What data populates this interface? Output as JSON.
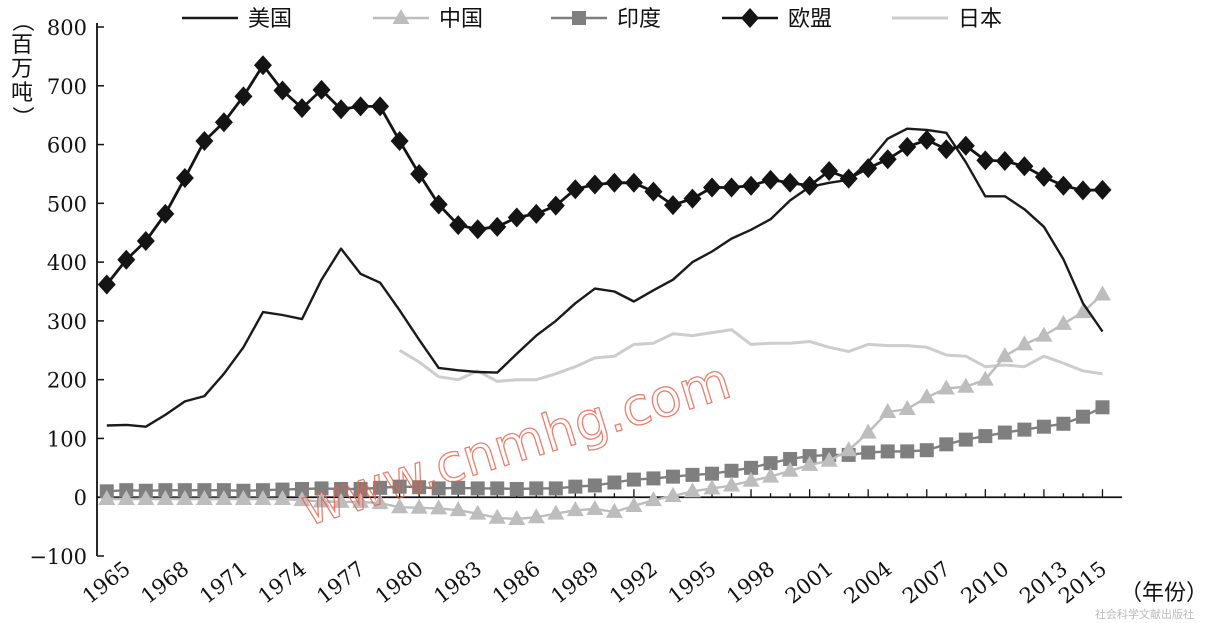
{
  "chart_data": {
    "type": "line",
    "title": "",
    "ylabel": "（百万吨）",
    "xlabel": "（年份）",
    "ylim": [
      -100,
      800
    ],
    "yticks": [
      "800",
      "700",
      "600",
      "500",
      "400",
      "300",
      "200",
      "100",
      "0",
      "−100"
    ],
    "xticks": [
      "1965",
      "1968",
      "1971",
      "1974",
      "1977",
      "1980",
      "1983",
      "1986",
      "1989",
      "1992",
      "1995",
      "1998",
      "2001",
      "2004",
      "2007",
      "2010",
      "2013",
      "2015"
    ],
    "legend_position": "top",
    "series": [
      {
        "name": "美国",
        "color": "#1a1a1a",
        "marker": "none",
        "points": [
          [
            1965,
            122
          ],
          [
            1966,
            123
          ],
          [
            1967,
            120
          ],
          [
            1968,
            140
          ],
          [
            1969,
            163
          ],
          [
            1970,
            172
          ],
          [
            1971,
            210
          ],
          [
            1972,
            255
          ],
          [
            1973,
            315
          ],
          [
            1974,
            310
          ],
          [
            1975,
            303
          ],
          [
            1976,
            370
          ],
          [
            1977,
            423
          ],
          [
            1978,
            380
          ],
          [
            1979,
            365
          ],
          [
            1980,
            318
          ],
          [
            1981,
            268
          ],
          [
            1982,
            220
          ],
          [
            1983,
            216
          ],
          [
            1984,
            213
          ],
          [
            1985,
            212
          ],
          [
            1986,
            244
          ],
          [
            1987,
            275
          ],
          [
            1988,
            300
          ],
          [
            1989,
            330
          ],
          [
            1990,
            355
          ],
          [
            1991,
            350
          ],
          [
            1992,
            333
          ],
          [
            1993,
            352
          ],
          [
            1994,
            370
          ],
          [
            1995,
            400
          ],
          [
            1996,
            418
          ],
          [
            1997,
            440
          ],
          [
            1998,
            455
          ],
          [
            1999,
            473
          ],
          [
            2000,
            505
          ],
          [
            2001,
            528
          ],
          [
            2002,
            535
          ],
          [
            2003,
            540
          ],
          [
            2004,
            570
          ],
          [
            2005,
            610
          ],
          [
            2006,
            627
          ],
          [
            2007,
            625
          ],
          [
            2008,
            620
          ],
          [
            2009,
            570
          ],
          [
            2010,
            512
          ],
          [
            2011,
            512
          ],
          [
            2012,
            490
          ],
          [
            2013,
            460
          ],
          [
            2014,
            405
          ],
          [
            2015,
            330
          ],
          [
            2016,
            282
          ]
        ]
      },
      {
        "name": "中国",
        "color": "#bdbdbd",
        "marker": "triangle",
        "points": [
          [
            1965,
            -3
          ],
          [
            1966,
            -3
          ],
          [
            1967,
            -3
          ],
          [
            1968,
            -3
          ],
          [
            1969,
            -3
          ],
          [
            1970,
            -3
          ],
          [
            1971,
            -3
          ],
          [
            1972,
            -3
          ],
          [
            1973,
            -3
          ],
          [
            1974,
            -3
          ],
          [
            1975,
            -5
          ],
          [
            1976,
            -7
          ],
          [
            1977,
            -8
          ],
          [
            1978,
            -8
          ],
          [
            1979,
            -10
          ],
          [
            1980,
            -17
          ],
          [
            1981,
            -18
          ],
          [
            1982,
            -19
          ],
          [
            1983,
            -22
          ],
          [
            1984,
            -28
          ],
          [
            1985,
            -35
          ],
          [
            1986,
            -37
          ],
          [
            1987,
            -34
          ],
          [
            1988,
            -28
          ],
          [
            1989,
            -22
          ],
          [
            1990,
            -20
          ],
          [
            1991,
            -25
          ],
          [
            1992,
            -15
          ],
          [
            1993,
            -5
          ],
          [
            1994,
            2
          ],
          [
            1995,
            10
          ],
          [
            1996,
            15
          ],
          [
            1997,
            20
          ],
          [
            1998,
            28
          ],
          [
            1999,
            35
          ],
          [
            2000,
            45
          ],
          [
            2001,
            55
          ],
          [
            2002,
            62
          ],
          [
            2003,
            80
          ],
          [
            2004,
            110
          ],
          [
            2005,
            145
          ],
          [
            2006,
            150
          ],
          [
            2007,
            170
          ],
          [
            2008,
            185
          ],
          [
            2009,
            188
          ],
          [
            2010,
            200
          ],
          [
            2011,
            240
          ],
          [
            2012,
            260
          ],
          [
            2013,
            275
          ],
          [
            2014,
            295
          ],
          [
            2015,
            315
          ],
          [
            2016,
            345
          ]
        ]
      },
      {
        "name": "印度",
        "color": "#7f7f7f",
        "marker": "square",
        "points": [
          [
            1965,
            10
          ],
          [
            1966,
            12
          ],
          [
            1967,
            11
          ],
          [
            1968,
            12
          ],
          [
            1969,
            12
          ],
          [
            1970,
            12
          ],
          [
            1971,
            12
          ],
          [
            1972,
            11
          ],
          [
            1973,
            12
          ],
          [
            1974,
            13
          ],
          [
            1975,
            14
          ],
          [
            1976,
            15
          ],
          [
            1977,
            14
          ],
          [
            1978,
            14
          ],
          [
            1979,
            16
          ],
          [
            1980,
            18
          ],
          [
            1981,
            17
          ],
          [
            1982,
            15
          ],
          [
            1983,
            16
          ],
          [
            1984,
            15
          ],
          [
            1985,
            15
          ],
          [
            1986,
            14
          ],
          [
            1987,
            15
          ],
          [
            1988,
            15
          ],
          [
            1989,
            18
          ],
          [
            1990,
            20
          ],
          [
            1991,
            25
          ],
          [
            1992,
            30
          ],
          [
            1993,
            32
          ],
          [
            1994,
            35
          ],
          [
            1995,
            38
          ],
          [
            1996,
            40
          ],
          [
            1997,
            45
          ],
          [
            1998,
            50
          ],
          [
            1999,
            58
          ],
          [
            2000,
            65
          ],
          [
            2001,
            70
          ],
          [
            2002,
            72
          ],
          [
            2003,
            72
          ],
          [
            2004,
            76
          ],
          [
            2005,
            78
          ],
          [
            2006,
            78
          ],
          [
            2007,
            80
          ],
          [
            2008,
            90
          ],
          [
            2009,
            98
          ],
          [
            2010,
            104
          ],
          [
            2011,
            110
          ],
          [
            2012,
            115
          ],
          [
            2013,
            120
          ],
          [
            2014,
            125
          ],
          [
            2015,
            137
          ],
          [
            2016,
            153
          ]
        ]
      },
      {
        "name": "欧盟",
        "color": "#141414",
        "marker": "diamond",
        "points": [
          [
            1965,
            362
          ],
          [
            1966,
            404
          ],
          [
            1967,
            436
          ],
          [
            1968,
            482
          ],
          [
            1969,
            543
          ],
          [
            1970,
            606
          ],
          [
            1971,
            638
          ],
          [
            1972,
            682
          ],
          [
            1973,
            735
          ],
          [
            1974,
            692
          ],
          [
            1975,
            662
          ],
          [
            1976,
            693
          ],
          [
            1977,
            660
          ],
          [
            1978,
            665
          ],
          [
            1979,
            665
          ],
          [
            1980,
            606
          ],
          [
            1981,
            550
          ],
          [
            1982,
            498
          ],
          [
            1983,
            463
          ],
          [
            1984,
            456
          ],
          [
            1985,
            460
          ],
          [
            1986,
            476
          ],
          [
            1987,
            482
          ],
          [
            1988,
            496
          ],
          [
            1989,
            524
          ],
          [
            1990,
            532
          ],
          [
            1991,
            535
          ],
          [
            1992,
            535
          ],
          [
            1993,
            520
          ],
          [
            1994,
            497
          ],
          [
            1995,
            508
          ],
          [
            1996,
            527
          ],
          [
            1997,
            527
          ],
          [
            1998,
            530
          ],
          [
            1999,
            540
          ],
          [
            2000,
            535
          ],
          [
            2001,
            530
          ],
          [
            2002,
            555
          ],
          [
            2003,
            542
          ],
          [
            2004,
            560
          ],
          [
            2005,
            575
          ],
          [
            2006,
            596
          ],
          [
            2007,
            608
          ],
          [
            2008,
            592
          ],
          [
            2009,
            598
          ],
          [
            2010,
            573
          ],
          [
            2011,
            572
          ],
          [
            2012,
            563
          ],
          [
            2013,
            545
          ],
          [
            2014,
            530
          ],
          [
            2015,
            522
          ],
          [
            2016,
            523
          ]
        ]
      },
      {
        "name": "日本",
        "color": "#cdcdcd",
        "marker": "none",
        "points": [
          [
            1980,
            250
          ],
          [
            1981,
            230
          ],
          [
            1982,
            205
          ],
          [
            1983,
            200
          ],
          [
            1984,
            215
          ],
          [
            1985,
            197
          ],
          [
            1986,
            200
          ],
          [
            1987,
            200
          ],
          [
            1988,
            210
          ],
          [
            1989,
            222
          ],
          [
            1990,
            237
          ],
          [
            1991,
            240
          ],
          [
            1992,
            260
          ],
          [
            1993,
            262
          ],
          [
            1994,
            278
          ],
          [
            1995,
            275
          ],
          [
            1996,
            280
          ],
          [
            1997,
            285
          ],
          [
            1998,
            260
          ],
          [
            1999,
            262
          ],
          [
            2000,
            262
          ],
          [
            2001,
            265
          ],
          [
            2002,
            255
          ],
          [
            2003,
            248
          ],
          [
            2004,
            260
          ],
          [
            2005,
            258
          ],
          [
            2006,
            258
          ],
          [
            2007,
            255
          ],
          [
            2008,
            242
          ],
          [
            2009,
            240
          ],
          [
            2010,
            222
          ],
          [
            2011,
            225
          ],
          [
            2012,
            222
          ],
          [
            2013,
            240
          ],
          [
            2014,
            228
          ],
          [
            2015,
            215
          ],
          [
            2016,
            210
          ]
        ]
      }
    ]
  },
  "watermark": "www.cnmhg.com",
  "corner_text": "社会科学文献出版社"
}
